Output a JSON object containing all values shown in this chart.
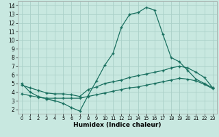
{
  "xlabel": "Humidex (Indice chaleur)",
  "background_color": "#c8e8e0",
  "grid_color": "#aad0c8",
  "line_color": "#1a7060",
  "xlim": [
    -0.5,
    23.5
  ],
  "ylim": [
    1.5,
    14.5
  ],
  "xticks": [
    0,
    1,
    2,
    3,
    4,
    5,
    6,
    7,
    8,
    9,
    10,
    11,
    12,
    13,
    14,
    15,
    16,
    17,
    18,
    19,
    20,
    21,
    22,
    23
  ],
  "yticks": [
    2,
    3,
    4,
    5,
    6,
    7,
    8,
    9,
    10,
    11,
    12,
    13,
    14
  ],
  "line1_x": [
    0,
    1,
    2,
    3,
    4,
    5,
    6,
    7,
    8,
    9,
    10,
    11,
    12,
    13,
    14,
    15,
    16,
    17,
    18,
    19,
    20,
    21,
    22,
    23
  ],
  "line1_y": [
    5.0,
    4.0,
    3.5,
    3.2,
    3.0,
    2.7,
    2.2,
    1.8,
    3.6,
    5.3,
    7.1,
    8.5,
    11.5,
    13.0,
    13.2,
    13.8,
    13.5,
    10.7,
    8.0,
    7.5,
    6.5,
    5.5,
    5.0,
    4.5
  ],
  "line2_x": [
    0,
    1,
    2,
    3,
    4,
    5,
    6,
    7,
    8,
    9,
    10,
    11,
    12,
    13,
    14,
    15,
    16,
    17,
    18,
    19,
    20,
    21,
    22,
    23
  ],
  "line2_y": [
    3.8,
    3.6,
    3.4,
    3.3,
    3.3,
    3.3,
    3.3,
    3.3,
    3.5,
    3.7,
    3.9,
    4.1,
    4.3,
    4.5,
    4.6,
    4.8,
    5.0,
    5.2,
    5.4,
    5.6,
    5.5,
    5.3,
    4.9,
    4.4
  ],
  "line3_x": [
    0,
    1,
    2,
    3,
    4,
    5,
    6,
    7,
    8,
    9,
    10,
    11,
    12,
    13,
    14,
    15,
    16,
    17,
    18,
    19,
    20,
    21,
    22,
    23
  ],
  "line3_y": [
    4.8,
    4.5,
    4.2,
    3.9,
    3.8,
    3.8,
    3.7,
    3.5,
    4.3,
    4.6,
    5.0,
    5.2,
    5.4,
    5.7,
    5.9,
    6.1,
    6.3,
    6.5,
    6.8,
    7.0,
    6.8,
    6.3,
    5.7,
    4.5
  ]
}
